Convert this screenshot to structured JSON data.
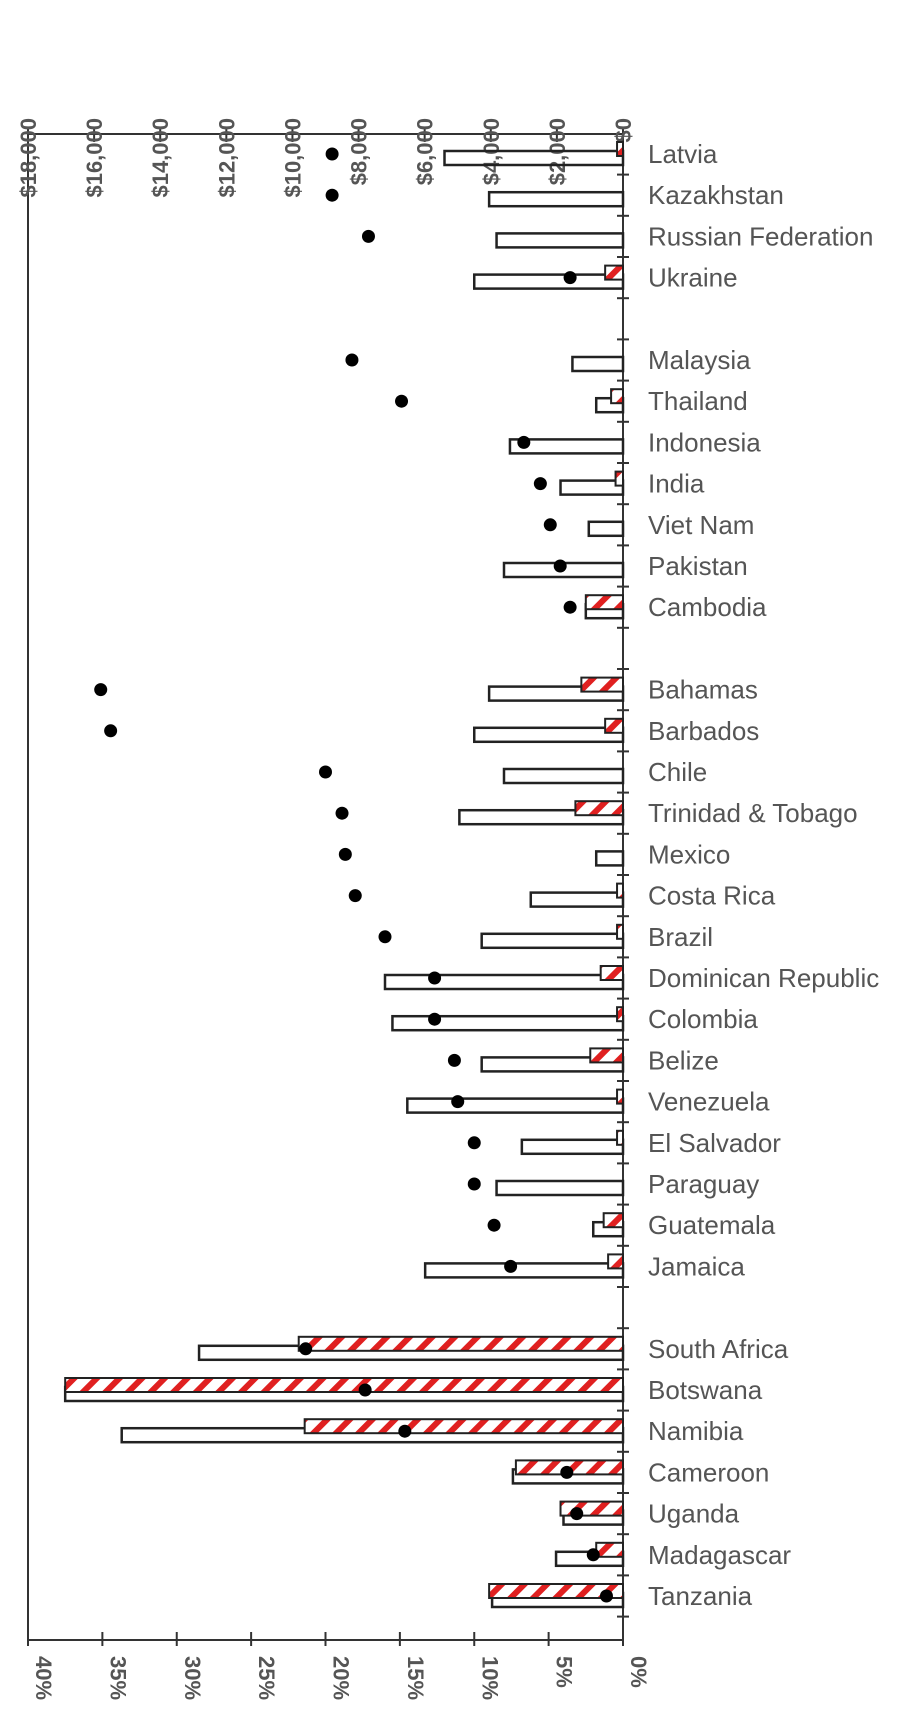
{
  "chart_data": {
    "type": "bar",
    "orientation": "horizontal",
    "top_axis": {
      "label": "",
      "ticks": [
        "$18,000",
        "$16,000",
        "$14,000",
        "$12,000",
        "$10,000",
        "$8,000",
        "$6,000",
        "$4,000",
        "$2,000",
        "$0"
      ],
      "range": [
        0,
        18000
      ]
    },
    "bottom_axis": {
      "label": "",
      "ticks": [
        "40%",
        "35%",
        "30%",
        "25%",
        "20%",
        "15%",
        "10%",
        "5%",
        "0%"
      ],
      "range": [
        0,
        40
      ]
    },
    "groups": [
      [
        "Latvia",
        "Kazakhstan",
        "Russian Federation",
        "Ukraine"
      ],
      [
        "Malaysia",
        "Thailand",
        "Indonesia",
        "India",
        "Viet Nam",
        "Pakistan",
        "Cambodia"
      ],
      [
        "Bahamas",
        "Barbados",
        "Chile",
        "Trinidad & Tobago",
        "Mexico",
        "Costa Rica",
        "Brazil",
        "Dominican Republic",
        "Colombia",
        "Belize",
        "Venezuela",
        "El Salvador",
        "Paraguay",
        "Guatemala",
        "Jamaica"
      ],
      [
        "South Africa",
        "Botswana",
        "Namibia",
        "Cameroon",
        "Uganda",
        "Madagascar",
        "Tanzania"
      ]
    ],
    "series": [
      {
        "style": "open-bar",
        "unit": "percent",
        "values": [
          12,
          9,
          8.5,
          10,
          3.4,
          1.8,
          7.6,
          4.2,
          2.3,
          8,
          2.5,
          9,
          10,
          8,
          11,
          1.8,
          6.2,
          9.5,
          16,
          15.5,
          9.5,
          14.5,
          6.8,
          8.5,
          2,
          13.3,
          28.5,
          37.5,
          33.7,
          7.4,
          4,
          4.5,
          8.8
        ]
      },
      {
        "style": "hatched-bar",
        "unit": "percent",
        "values": [
          0.4,
          0,
          0,
          1.2,
          0,
          0.8,
          0,
          0.5,
          0,
          0,
          2.5,
          2.8,
          1.2,
          0,
          3.2,
          0,
          0.4,
          0.4,
          1.5,
          0.4,
          2.2,
          0.4,
          0.4,
          0,
          1.3,
          1,
          21.8,
          37.5,
          21.4,
          7.2,
          4.2,
          1.8,
          9
        ]
      },
      {
        "style": "black-dot",
        "unit": "US dollars",
        "values": [
          8800,
          8800,
          7700,
          1600,
          8200,
          6700,
          3000,
          2500,
          2200,
          1900,
          1600,
          15800,
          15500,
          9000,
          8500,
          8400,
          8100,
          7200,
          5700,
          5700,
          5100,
          5000,
          4500,
          4500,
          3900,
          3400,
          9600,
          7800,
          6600,
          1700,
          1400,
          900,
          500
        ]
      }
    ]
  }
}
